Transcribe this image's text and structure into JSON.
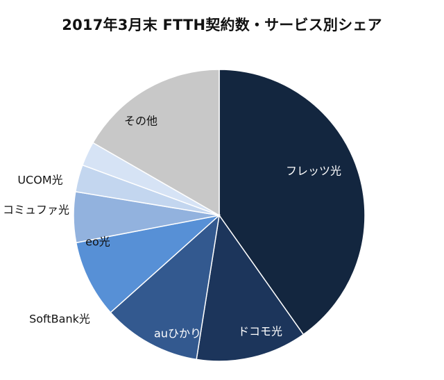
{
  "title": "2017年3月末 FTTH契約数・サービス別シェア",
  "chart_data": {
    "type": "pie",
    "title": "2017年3月末 FTTH契約数・サービス別シェア",
    "start_angle_deg": 0,
    "direction": "clockwise",
    "slices": [
      {
        "label": "フレッツ光",
        "value": 40.2,
        "color": "#13263f",
        "label_color": "#ffffff",
        "label_inside": true
      },
      {
        "label": "ドコモ光",
        "value": 12.3,
        "color": "#1c355b",
        "label_color": "#ffffff",
        "label_inside": true
      },
      {
        "label": "auひかり",
        "value": 10.9,
        "color": "#33598f",
        "label_color": "#ffffff",
        "label_inside": true
      },
      {
        "label": "SoftBank光",
        "value": 8.6,
        "color": "#5790d6",
        "label_color": "#111111",
        "label_inside": false
      },
      {
        "label": "eo光",
        "value": 5.6,
        "color": "#92b2de",
        "label_color": "#111111",
        "label_inside": true
      },
      {
        "label": "コミュファ光",
        "value": 3.0,
        "color": "#c3d6ef",
        "label_color": "#111111",
        "label_inside": false
      },
      {
        "label": "UCOM光",
        "value": 2.7,
        "color": "#d6e3f5",
        "label_color": "#111111",
        "label_inside": false
      },
      {
        "label": "その他",
        "value": 16.7,
        "color": "#c8c8c8",
        "label_color": "#111111",
        "label_inside": true
      }
    ]
  }
}
